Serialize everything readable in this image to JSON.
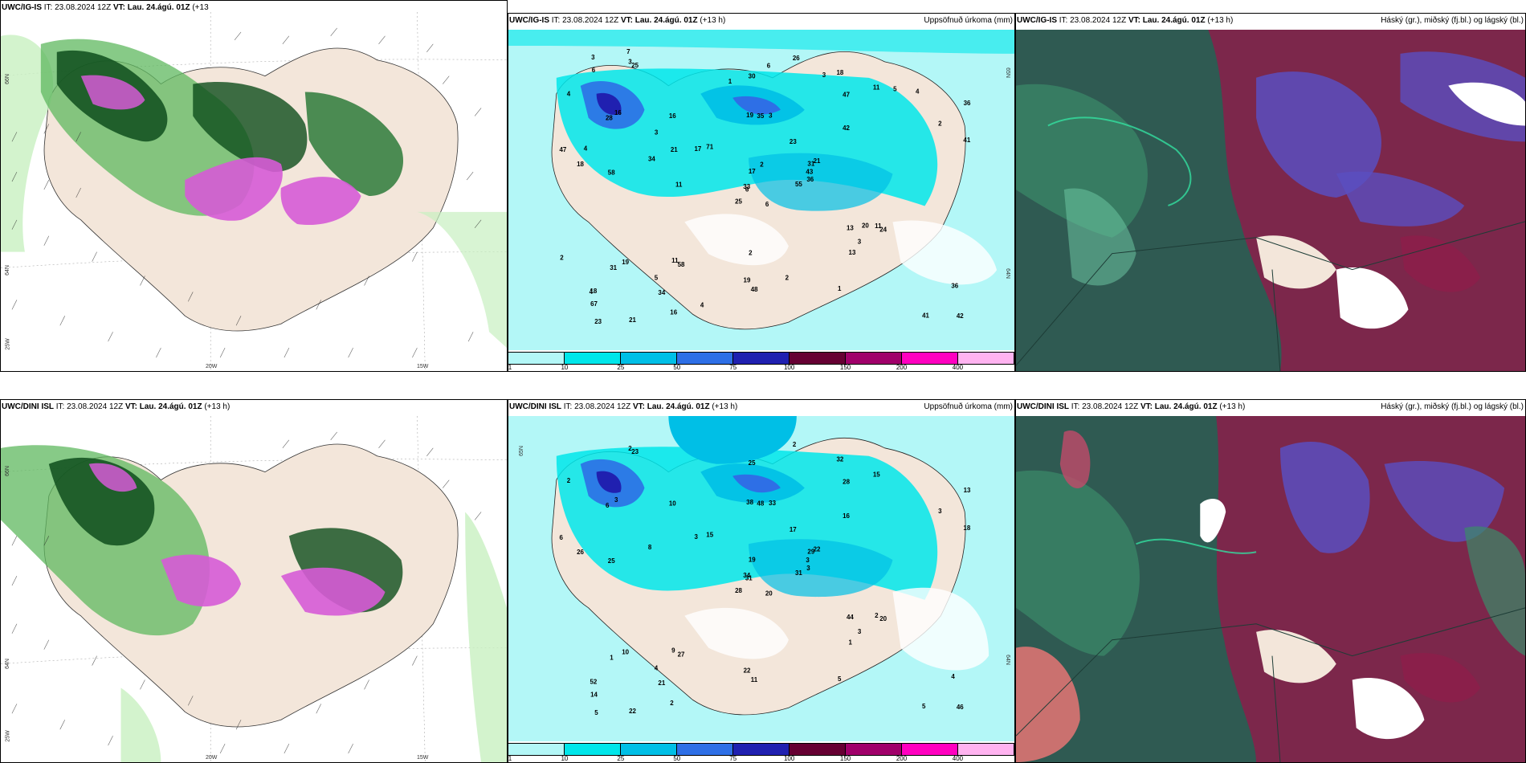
{
  "panels": [
    {
      "id": "p1",
      "title_model": "UWC/IG-IS",
      "title_it": "IT: 23.08.2024 12Z",
      "title_vt": "VT: Lau. 24.ágú. 01Z",
      "title_lead": "(+13",
      "title_lead2": "h)",
      "right_label": "",
      "lat_labels": [
        "66N",
        "64N"
      ],
      "lon_labels": [
        "20W",
        "15W",
        "25W"
      ]
    },
    {
      "id": "p2",
      "title_model": "UWC/IG-IS",
      "title_it": "IT: 23.08.2024 12Z",
      "title_vt": "VT: Lau. 24.ágú. 01Z",
      "title_lead": "(+13 h)",
      "right_label": "Uppsöfnuð úrkoma (mm)",
      "lat_labels": [
        "65N",
        "64N"
      ],
      "numbers": [
        "6",
        "28",
        "6",
        "18",
        "31",
        "58",
        "18",
        "3",
        "47",
        "55",
        "25",
        "42",
        "58",
        "36",
        "25",
        "42",
        "21",
        "19",
        "23",
        "19",
        "71",
        "67",
        "34",
        "35",
        "21",
        "24",
        "16",
        "30",
        "18",
        "13",
        "41",
        "33",
        "19",
        "17",
        "16",
        "11",
        "11",
        "41",
        "36",
        "11",
        "26",
        "17",
        "34",
        "13",
        "16",
        "47",
        "43",
        "23",
        "48",
        "36",
        "31",
        "2",
        "4",
        "3",
        "1",
        "5",
        "3",
        "3",
        "2",
        "4",
        "6",
        "11",
        "4",
        "3",
        "5",
        "7",
        "3",
        "1",
        "2",
        "2",
        "2",
        "4",
        "20",
        "21",
        "4",
        "6"
      ],
      "cbar_ticks": [
        "1",
        "10",
        "25",
        "50",
        "75",
        "100",
        "150",
        "200",
        "400"
      ]
    },
    {
      "id": "p3",
      "title_model": "UWC/IG-IS",
      "title_it": "IT: 23.08.2024 12Z",
      "title_vt": "VT: Lau. 24.ágú. 01Z",
      "title_lead": "(+13 h)",
      "right_label": "Háský (gr.), miðský (fj.bl.) og lágský (bl.)"
    },
    {
      "id": "p4",
      "title_model": "UWC/DINI ISL",
      "title_it": "IT: 23.08.2024 12Z",
      "title_vt": "VT: Lau. 24.ágú. 01Z",
      "title_lead": "(+13 h)",
      "right_label": "",
      "lat_labels": [
        "66N",
        "64N"
      ],
      "lon_labels": [
        "20W",
        "15W",
        "25W"
      ]
    },
    {
      "id": "p5",
      "title_model": "UWC/DINI ISL",
      "title_it": "IT: 23.08.2024 12Z",
      "title_vt": "VT: Lau. 24.ágú. 01Z",
      "title_lead": "(+13 h)",
      "right_label": "Uppsöfnuð úrkoma (mm)",
      "lat_labels": [
        "65N",
        "64N"
      ],
      "numbers": [
        "20",
        "6",
        "31",
        "52",
        "29",
        "27",
        "32",
        "33",
        "28",
        "31",
        "23",
        "46",
        "25",
        "13",
        "28",
        "16",
        "22",
        "38",
        "17",
        "10",
        "15",
        "14",
        "21",
        "48",
        "22",
        "20",
        "3",
        "25",
        "26",
        "44",
        "18",
        "34",
        "22",
        "19",
        "10",
        "15",
        "9",
        "5",
        "4",
        "2",
        "2",
        "3",
        "8",
        "1",
        "2",
        "6",
        "3",
        "5",
        "11",
        "3",
        "1",
        "3",
        "2",
        "3",
        "5",
        "4",
        "2"
      ],
      "cbar_ticks": [
        "1",
        "10",
        "25",
        "50",
        "75",
        "100",
        "150",
        "200",
        "400"
      ]
    },
    {
      "id": "p6",
      "title_model": "UWC/DINI ISL",
      "title_it": "IT: 23.08.2024 12Z",
      "title_vt": "VT: Lau. 24.ágú. 01Z",
      "title_lead": "(+13 h)",
      "right_label": "Háský (gr.), miðský (fj.bl.) og lágský (bl.)"
    }
  ],
  "colors": {
    "land": "#f3e6da",
    "precip_1": "#b3f7f7",
    "precip_10": "#00e6ea",
    "precip_25": "#00bfe6",
    "precip_50": "#2e6fe6",
    "precip_75": "#2020b0",
    "precip_100": "#660033",
    "precip_150": "#a0006a",
    "precip_200": "#ff00c0",
    "precip_400": "#ffb3f0",
    "green_light": "#c8f0c0",
    "green_mid": "#5fb85f",
    "green_dark": "#0e4d1c",
    "magenta": "#d65bd6",
    "cloud_high": "#2f5a52",
    "cloud_mid": "#5a4fc0",
    "cloud_low": "#8a1f4a"
  }
}
